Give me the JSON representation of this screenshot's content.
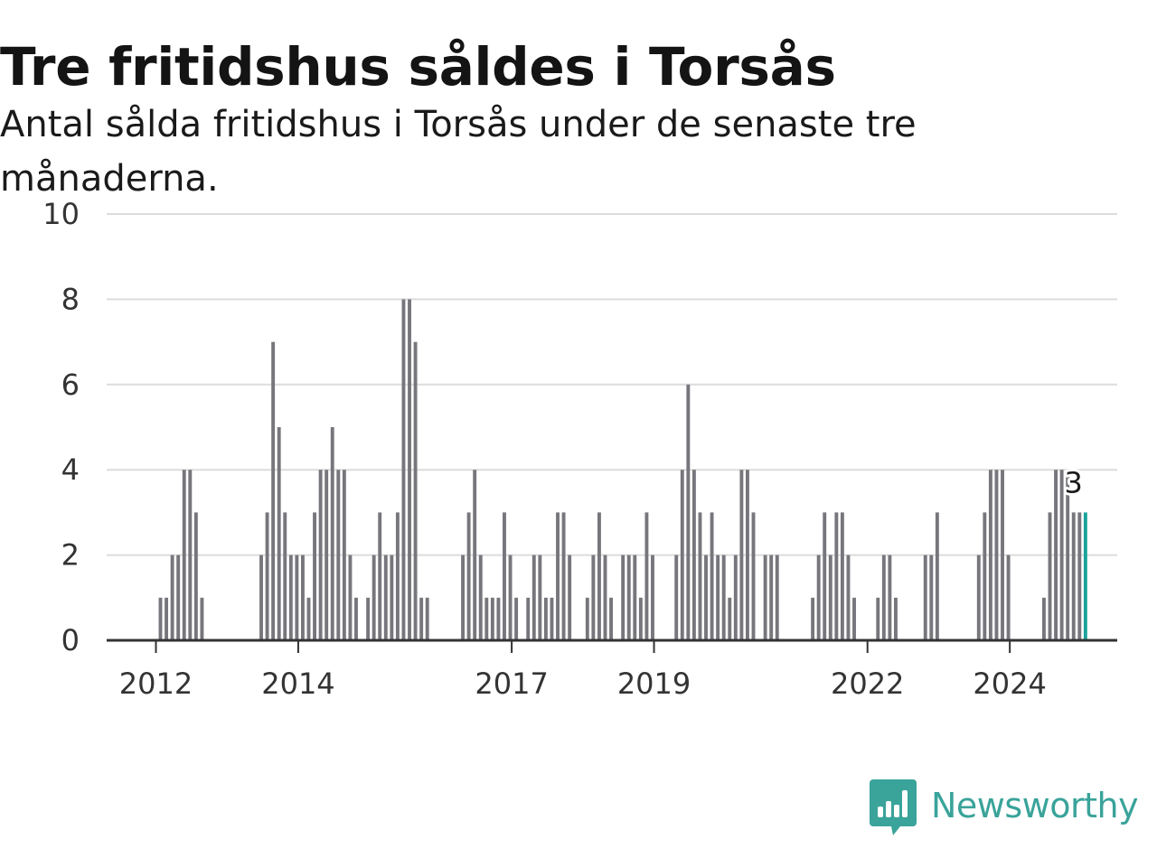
{
  "title": "Tre fritidshus såldes i Torsås",
  "subtitle": "Antal sålda fritidshus i Torsås under de senaste tre månaderna.",
  "brand": {
    "name": "Newsworthy",
    "color": "#3aa39a",
    "icon": "newsworthy-bar-chart-icon"
  },
  "colors": {
    "bar": "#77767c",
    "highlight": "#1aa39a",
    "grid": "#dcdcdc",
    "axis": "#333333"
  },
  "chart_data": {
    "type": "bar",
    "title": "Tre fritidshus såldes i Torsås",
    "subtitle": "Antal sålda fritidshus i Torsås under de senaste tre månaderna.",
    "xlabel": "",
    "ylabel": "",
    "ylim": [
      0,
      10
    ],
    "yticks": [
      "0",
      "2",
      "4",
      "6",
      "8",
      "10"
    ],
    "xticks": [
      {
        "label": "2012",
        "index": 0
      },
      {
        "label": "2014",
        "index": 24
      },
      {
        "label": "2017",
        "index": 60
      },
      {
        "label": "2019",
        "index": 84
      },
      {
        "label": "2022",
        "index": 120
      },
      {
        "label": "2024",
        "index": 144
      }
    ],
    "grid": true,
    "legend": "none",
    "series": [
      {
        "values": [
          1,
          1,
          2,
          2,
          4,
          4,
          3,
          1,
          0,
          0,
          0,
          0,
          0,
          0,
          0,
          0,
          0,
          2,
          3,
          7,
          5,
          3,
          2,
          2,
          2,
          1,
          3,
          4,
          4,
          5,
          4,
          4,
          2,
          1,
          0,
          1,
          2,
          3,
          2,
          2,
          3,
          8,
          8,
          7,
          1,
          1,
          0,
          0,
          0,
          0,
          0,
          2,
          3,
          4,
          2,
          1,
          1,
          1,
          3,
          2,
          1,
          0,
          1,
          2,
          2,
          1,
          1,
          3,
          3,
          2,
          0,
          0,
          1,
          2,
          3,
          2,
          1,
          0,
          2,
          2,
          2,
          1,
          3,
          2,
          0,
          0,
          0,
          2,
          4,
          6,
          4,
          3,
          2,
          3,
          2,
          2,
          1,
          2,
          4,
          4,
          3,
          0,
          2,
          2,
          2,
          0,
          0,
          0,
          0,
          0,
          1,
          2,
          3,
          2,
          3,
          3,
          2,
          1,
          0,
          0,
          0,
          1,
          2,
          2,
          1,
          0,
          0,
          0,
          0,
          2,
          2,
          3,
          0,
          0,
          0,
          0,
          0,
          0,
          2,
          3,
          4,
          4,
          4,
          2,
          0,
          0,
          0,
          0,
          0,
          1,
          3,
          4,
          4,
          4,
          3,
          3,
          3
        ]
      }
    ],
    "annotations": [
      {
        "text": "3",
        "index": 154,
        "value": 3
      }
    ]
  }
}
